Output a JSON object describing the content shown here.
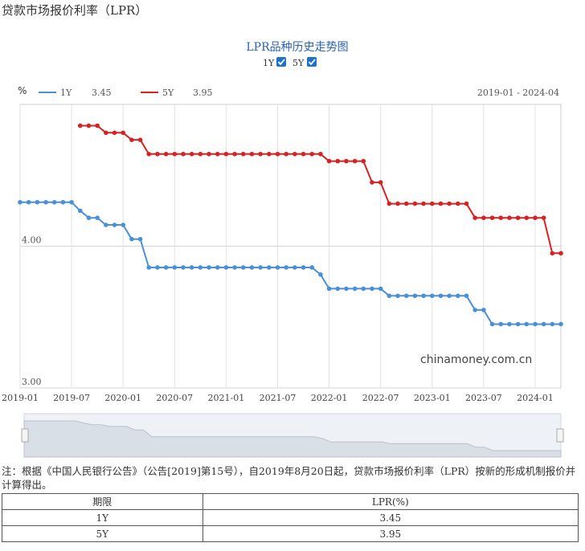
{
  "page": {
    "title": "贷款市场报价利率（LPR）",
    "watermark": "chinamoney.com.cn",
    "note": "注：根据《中国人民银行公告》（公告[2019]第15号），自2019年8月20日起，贷款市场报价利率（LPR）按新的形成机制报价并计算得出。"
  },
  "chart_controls": {
    "y_unit": "%",
    "toggles": [
      {
        "label": "1Y",
        "checked": true
      },
      {
        "label": "5Y",
        "checked": true
      }
    ],
    "range_label": "2019-01 - 2024-04",
    "legend": [
      {
        "name": "1Y",
        "value": "3.45",
        "color": "#4a90d9"
      },
      {
        "name": "5Y",
        "value": "3.95",
        "color": "#d62222"
      }
    ]
  },
  "table": {
    "headers": [
      "期限",
      "LPR(%)"
    ],
    "rows": [
      [
        "1Y",
        "3.45"
      ],
      [
        "5Y",
        "3.95"
      ]
    ]
  },
  "chart_data": {
    "type": "line",
    "title": "LPR品种历史走势图",
    "xlabel": "",
    "ylabel": "%",
    "ylim": [
      3.0,
      5.0
    ],
    "y_ticks": [
      "4.00",
      "3.00"
    ],
    "x_ticks": [
      "2019-01",
      "2019-07",
      "2020-01",
      "2020-07",
      "2021-01",
      "2021-07",
      "2022-01",
      "2022-07",
      "2023-01",
      "2023-07",
      "2024-01"
    ],
    "grid": true,
    "legend_position": "top-left",
    "x": [
      "2019-01",
      "2019-02",
      "2019-03",
      "2019-04",
      "2019-05",
      "2019-06",
      "2019-07",
      "2019-08",
      "2019-09",
      "2019-10",
      "2019-11",
      "2019-12",
      "2020-01",
      "2020-02",
      "2020-03",
      "2020-04",
      "2020-05",
      "2020-06",
      "2020-07",
      "2020-08",
      "2020-09",
      "2020-10",
      "2020-11",
      "2020-12",
      "2021-01",
      "2021-02",
      "2021-03",
      "2021-04",
      "2021-05",
      "2021-06",
      "2021-07",
      "2021-08",
      "2021-09",
      "2021-10",
      "2021-11",
      "2021-12",
      "2022-01",
      "2022-02",
      "2022-03",
      "2022-04",
      "2022-05",
      "2022-06",
      "2022-07",
      "2022-08",
      "2022-09",
      "2022-10",
      "2022-11",
      "2022-12",
      "2023-01",
      "2023-02",
      "2023-03",
      "2023-04",
      "2023-05",
      "2023-06",
      "2023-07",
      "2023-08",
      "2023-09",
      "2023-10",
      "2023-11",
      "2023-12",
      "2024-01",
      "2024-02",
      "2024-03",
      "2024-04"
    ],
    "series": [
      {
        "name": "1Y",
        "color": "#4a90d9",
        "values": [
          4.31,
          4.31,
          4.31,
          4.31,
          4.31,
          4.31,
          4.31,
          4.25,
          4.2,
          4.2,
          4.15,
          4.15,
          4.15,
          4.05,
          4.05,
          3.85,
          3.85,
          3.85,
          3.85,
          3.85,
          3.85,
          3.85,
          3.85,
          3.85,
          3.85,
          3.85,
          3.85,
          3.85,
          3.85,
          3.85,
          3.85,
          3.85,
          3.85,
          3.85,
          3.85,
          3.8,
          3.7,
          3.7,
          3.7,
          3.7,
          3.7,
          3.7,
          3.7,
          3.65,
          3.65,
          3.65,
          3.65,
          3.65,
          3.65,
          3.65,
          3.65,
          3.65,
          3.65,
          3.55,
          3.55,
          3.45,
          3.45,
          3.45,
          3.45,
          3.45,
          3.45,
          3.45,
          3.45,
          3.45
        ]
      },
      {
        "name": "5Y",
        "color": "#d62222",
        "values": [
          null,
          null,
          null,
          null,
          null,
          null,
          null,
          4.85,
          4.85,
          4.85,
          4.8,
          4.8,
          4.8,
          4.75,
          4.75,
          4.65,
          4.65,
          4.65,
          4.65,
          4.65,
          4.65,
          4.65,
          4.65,
          4.65,
          4.65,
          4.65,
          4.65,
          4.65,
          4.65,
          4.65,
          4.65,
          4.65,
          4.65,
          4.65,
          4.65,
          4.65,
          4.6,
          4.6,
          4.6,
          4.6,
          4.6,
          4.45,
          4.45,
          4.3,
          4.3,
          4.3,
          4.3,
          4.3,
          4.3,
          4.3,
          4.3,
          4.3,
          4.3,
          4.2,
          4.2,
          4.2,
          4.2,
          4.2,
          4.2,
          4.2,
          4.2,
          4.2,
          3.95,
          3.95
        ]
      }
    ]
  }
}
